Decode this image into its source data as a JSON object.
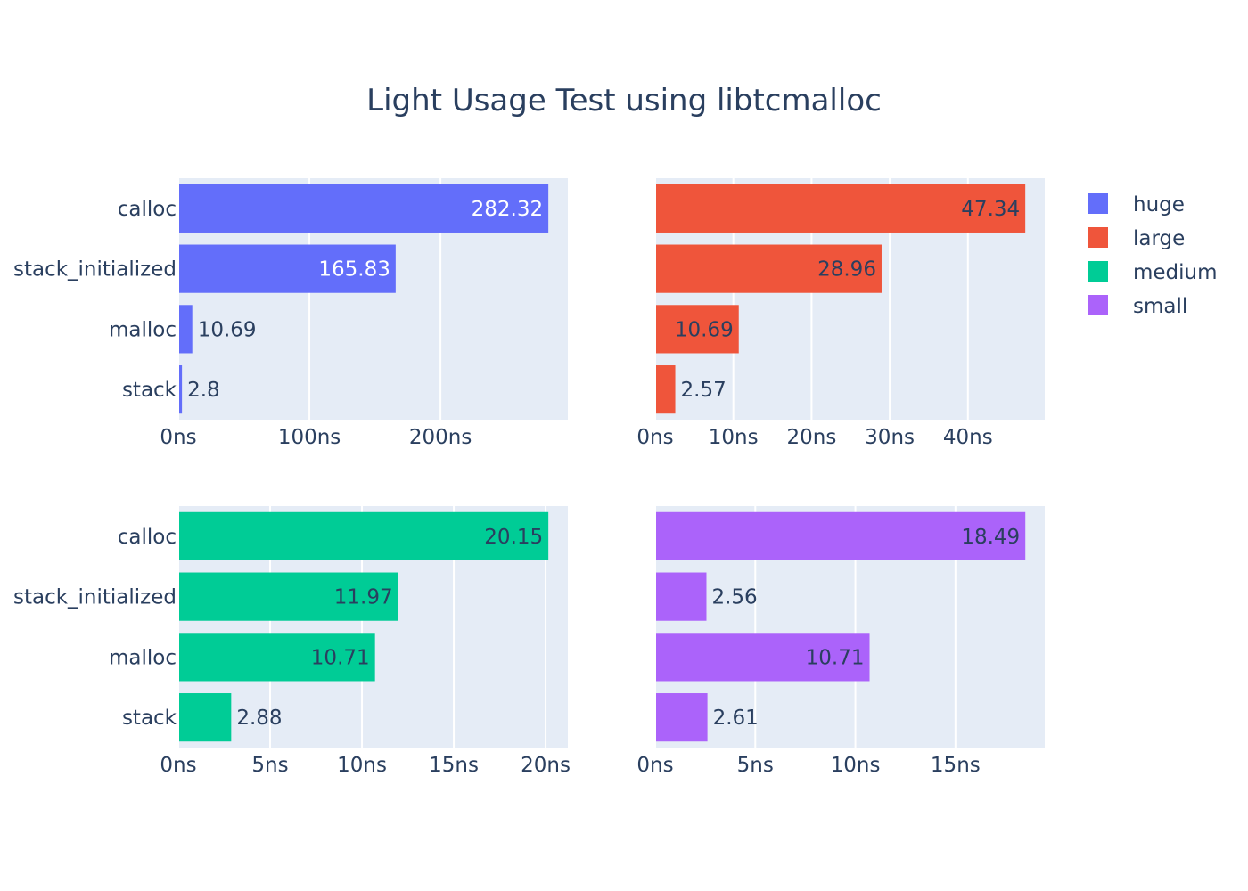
{
  "chart_data": {
    "type": "bar",
    "orientation": "horizontal",
    "title": "Light Usage Test using libtcmalloc",
    "legend_position": "top-right",
    "grid": true,
    "categories": [
      "calloc",
      "stack_initialized",
      "malloc",
      "stack"
    ],
    "subplots": [
      {
        "series_name": "huge",
        "color": "#636efa",
        "values": [
          282.32,
          165.83,
          10.69,
          2.8
        ],
        "value_labels": [
          "282.32",
          "165.83",
          "10.69",
          "2.8"
        ],
        "xlim": [
          0,
          297.18
        ],
        "xticks": [
          0,
          100,
          200
        ],
        "xtick_labels": [
          "0ns",
          "100ns",
          "200ns"
        ]
      },
      {
        "series_name": "large",
        "color": "#ef553b",
        "values": [
          47.34,
          28.96,
          10.69,
          2.57
        ],
        "value_labels": [
          "47.34",
          "28.96",
          "10.69",
          "2.57"
        ],
        "xlim": [
          0,
          49.83
        ],
        "xticks": [
          0,
          10,
          20,
          30,
          40
        ],
        "xtick_labels": [
          "0ns",
          "10ns",
          "20ns",
          "30ns",
          "40ns"
        ]
      },
      {
        "series_name": "medium",
        "color": "#00cc96",
        "values": [
          20.15,
          11.97,
          10.71,
          2.88
        ],
        "value_labels": [
          "20.15",
          "11.97",
          "10.71",
          "2.88"
        ],
        "xlim": [
          0,
          21.21
        ],
        "xticks": [
          0,
          5,
          10,
          15,
          20
        ],
        "xtick_labels": [
          "0ns",
          "5ns",
          "10ns",
          "15ns",
          "20ns"
        ]
      },
      {
        "series_name": "small",
        "color": "#ab63fa",
        "values": [
          18.49,
          2.56,
          10.71,
          2.61
        ],
        "value_labels": [
          "18.49",
          "2.56",
          "10.71",
          "2.61"
        ],
        "xlim": [
          0,
          19.46
        ],
        "xticks": [
          0,
          5,
          10,
          15
        ],
        "xtick_labels": [
          "0ns",
          "5ns",
          "10ns",
          "15ns"
        ]
      }
    ],
    "legend": [
      {
        "name": "huge",
        "color": "#636efa"
      },
      {
        "name": "large",
        "color": "#ef553b"
      },
      {
        "name": "medium",
        "color": "#00cc96"
      },
      {
        "name": "small",
        "color": "#ab63fa"
      }
    ]
  }
}
